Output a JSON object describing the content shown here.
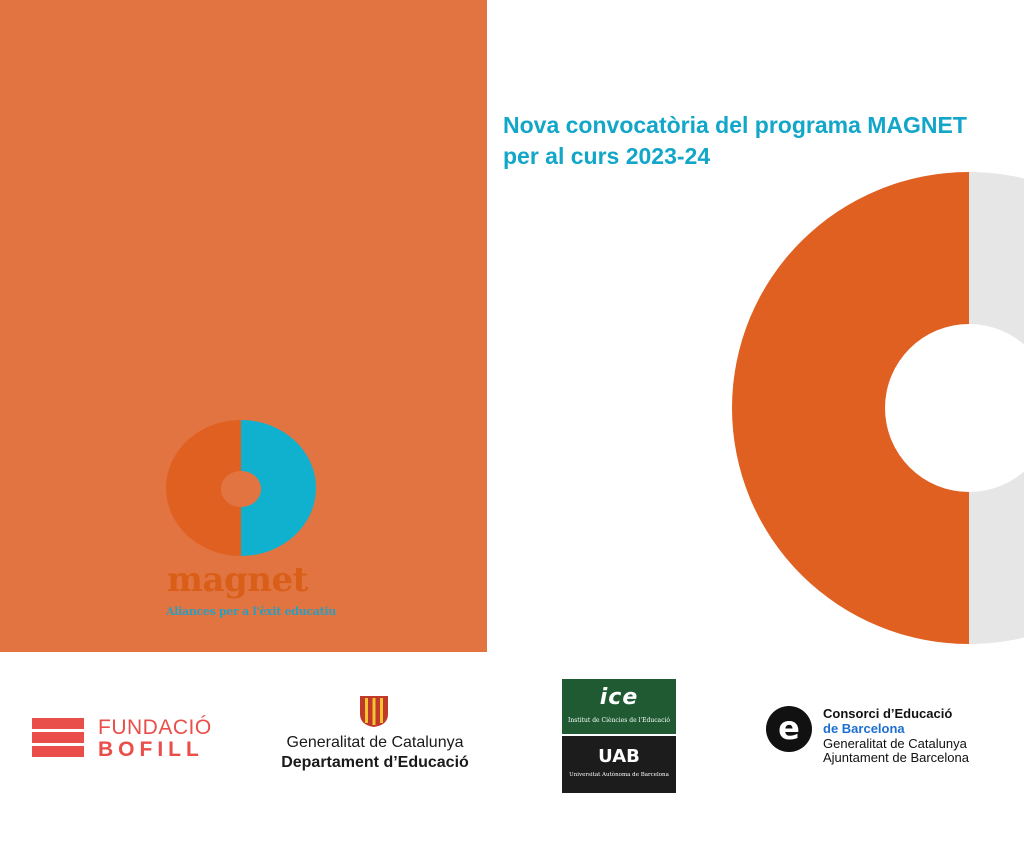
{
  "headline": {
    "line1": "Nova convocatòria del programa MAGNET",
    "line2": "per al curs 2023-24"
  },
  "magnet": {
    "wordmark": "magnet",
    "tagline": "Aliances per a l'èxit educatiu"
  },
  "logos": {
    "bofill": {
      "line1": "FUNDACIÓ",
      "line2": "BOFILL"
    },
    "generalitat": {
      "line1": "Generalitat de Catalunya",
      "line2": "Departament d’Educació"
    },
    "ice": {
      "mark": "ice",
      "subtitle": "Institut de Ciències de l'Educació"
    },
    "uab": {
      "mark": "UAB",
      "subtitle": "Universitat Autònoma de Barcelona"
    },
    "consorci": {
      "line1": "Consorci d’Educació",
      "line2": "de Barcelona",
      "line3": "Generalitat de Catalunya",
      "line4": "Ajuntament de Barcelona"
    }
  },
  "colors": {
    "panel_orange": "#e27442",
    "ring_orange": "#df6020",
    "magnet_blue": "#10b1cf",
    "headline_blue": "#12a6c9",
    "ring_grey": "#e6e6e7",
    "bofill_red": "#e94e4a",
    "ice_green": "#1f5a32",
    "consorci_blue": "#1d6fd1"
  }
}
